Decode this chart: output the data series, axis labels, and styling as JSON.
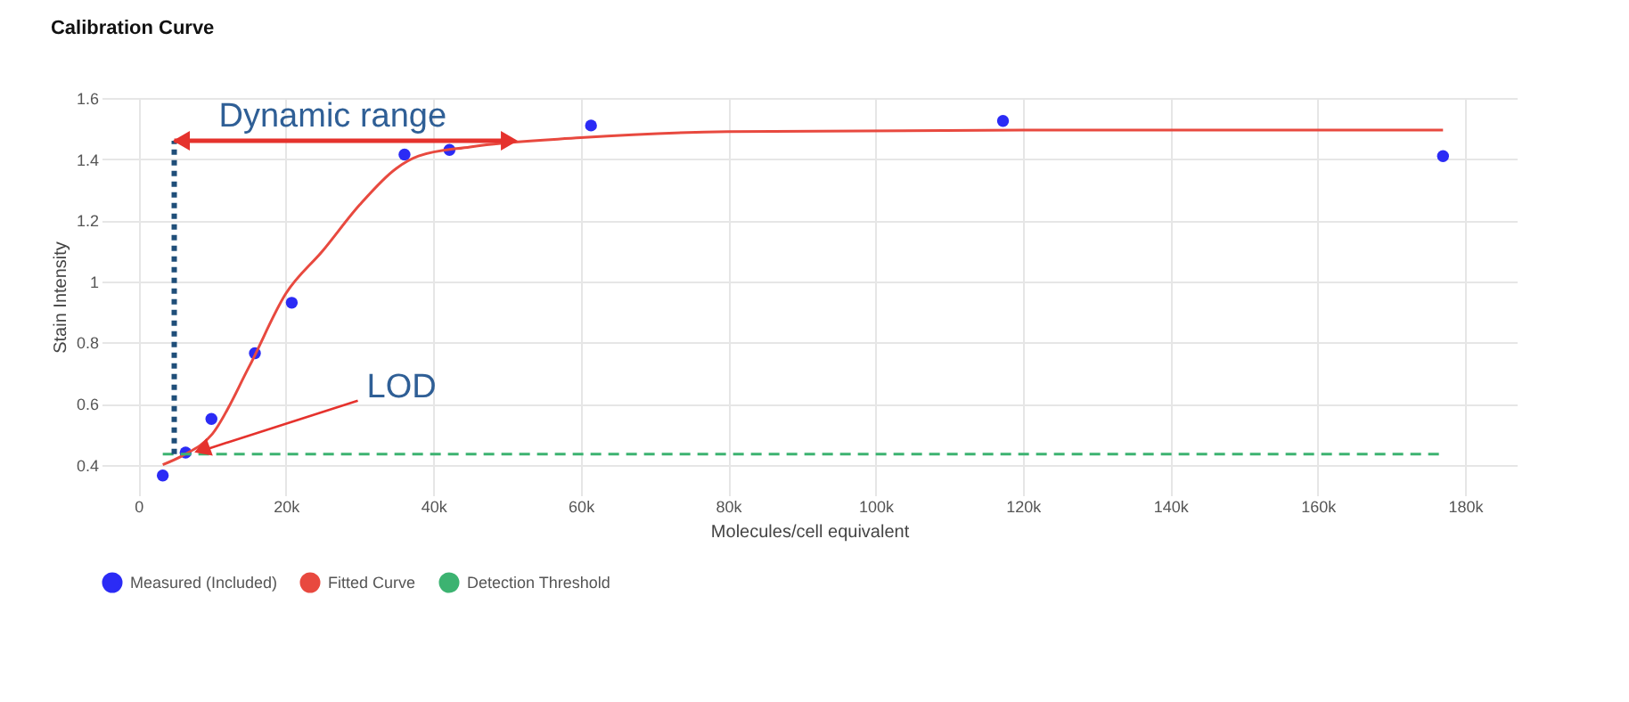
{
  "chart_data": {
    "type": "scatter",
    "title": "Calibration Curve",
    "xlabel": "Molecules/cell equivalent",
    "ylabel": "Stain Intensity",
    "xlim": [
      -5000,
      187000
    ],
    "ylim": [
      0.3,
      1.6
    ],
    "xticks": [
      0,
      {
        "value": 20000,
        "label": "20k"
      },
      {
        "value": 40000,
        "label": "40k"
      },
      {
        "value": 60000,
        "label": "60k"
      },
      {
        "value": 80000,
        "label": "80k"
      },
      {
        "value": 100000,
        "label": "100k"
      },
      {
        "value": 120000,
        "label": "120k"
      },
      {
        "value": 140000,
        "label": "140k"
      },
      {
        "value": 160000,
        "label": "160k"
      },
      {
        "value": 180000,
        "label": "180k"
      }
    ],
    "yticks": [
      0.4,
      0.6,
      0.8,
      {
        "value": 1,
        "label": "1"
      },
      1.2,
      1.4,
      1.6
    ],
    "grid": true,
    "legend": "bottom",
    "series": [
      {
        "name": "Measured (Included)",
        "type": "scatter",
        "marker": "circle",
        "color": "#2b2bf5",
        "x": [
          3300,
          6400,
          9900,
          15800,
          20800,
          36100,
          42200,
          61400,
          117300,
          177000
        ],
        "values": [
          0.365,
          0.44,
          0.55,
          0.765,
          0.93,
          1.415,
          1.43,
          1.51,
          1.525,
          1.41
        ]
      },
      {
        "name": "Fitted Curve",
        "type": "line",
        "line_style": "solid",
        "color": "#e8493f",
        "x": [
          3300,
          6000,
          10000,
          15000,
          20000,
          25000,
          30000,
          35000,
          38000,
          45000,
          60000,
          80000,
          120000,
          177000
        ],
        "values": [
          0.4,
          0.43,
          0.5,
          0.72,
          0.96,
          1.1,
          1.25,
          1.37,
          1.41,
          1.44,
          1.47,
          1.49,
          1.495,
          1.495
        ]
      },
      {
        "name": "Detection Threshold",
        "type": "line",
        "line_style": "dashed",
        "color": "#3cb371",
        "x": [
          3300,
          177000
        ],
        "values": [
          0.435,
          0.435
        ]
      }
    ],
    "annotations": [
      "Dynamic range",
      {
        "text": "LOD",
        "x": 8000,
        "y": 0.435
      }
    ]
  }
}
